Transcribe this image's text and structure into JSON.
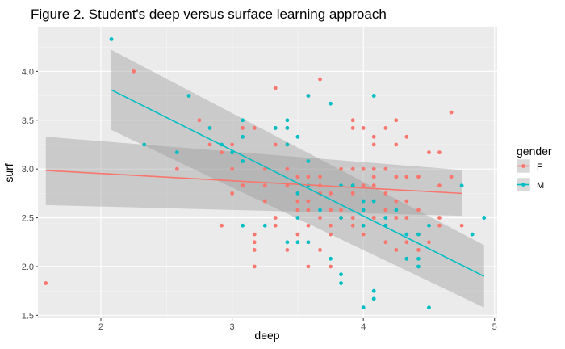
{
  "chart_data": {
    "type": "scatter",
    "title": "Figure 2. Student's deep versus surface learning approach",
    "xlabel": "deep",
    "ylabel": "surf",
    "xlim": [
      1.52,
      5.02
    ],
    "ylim": [
      1.47,
      4.45
    ],
    "x_ticks": [
      2,
      3,
      4,
      5
    ],
    "x_tick_labels": [
      "2",
      "3",
      "4",
      "5"
    ],
    "y_ticks": [
      1.5,
      2.0,
      2.5,
      3.0,
      3.5,
      4.0
    ],
    "y_tick_labels": [
      "1.5",
      "2.0",
      "2.5",
      "3.0",
      "3.5",
      "4.0"
    ],
    "grid": true,
    "legend": {
      "title": "gender",
      "position": "right",
      "entries": [
        {
          "label": "F",
          "color": "#F8766D"
        },
        {
          "label": "M",
          "color": "#00BFC4"
        }
      ]
    },
    "series": [
      {
        "name": "F",
        "color": "#F8766D",
        "points": [
          [
            1.58,
            1.83
          ],
          [
            2.25,
            4.0
          ],
          [
            2.58,
            3.0
          ],
          [
            2.75,
            3.5
          ],
          [
            2.83,
            3.25
          ],
          [
            2.92,
            2.42
          ],
          [
            2.92,
            3.17
          ],
          [
            3.0,
            3.0
          ],
          [
            3.0,
            2.75
          ],
          [
            3.0,
            3.25
          ],
          [
            3.08,
            3.08
          ],
          [
            3.08,
            2.83
          ],
          [
            3.08,
            3.42
          ],
          [
            3.17,
            3.42
          ],
          [
            3.17,
            2.25
          ],
          [
            3.17,
            2.17
          ],
          [
            3.17,
            2.0
          ],
          [
            3.25,
            2.67
          ],
          [
            3.25,
            2.83
          ],
          [
            3.25,
            3.0
          ],
          [
            3.33,
            3.25
          ],
          [
            3.33,
            2.5
          ],
          [
            3.33,
            2.42
          ],
          [
            3.42,
            3.25
          ],
          [
            3.42,
            3.42
          ],
          [
            3.42,
            3.0
          ],
          [
            3.42,
            2.83
          ],
          [
            3.42,
            2.17
          ],
          [
            3.5,
            2.92
          ],
          [
            3.5,
            2.75
          ],
          [
            3.5,
            2.67
          ],
          [
            3.5,
            2.58
          ],
          [
            3.5,
            2.33
          ],
          [
            3.58,
            2.67
          ],
          [
            3.58,
            2.58
          ],
          [
            3.58,
            2.42
          ],
          [
            3.58,
            2.25
          ],
          [
            3.58,
            2.0
          ],
          [
            3.67,
            2.92
          ],
          [
            3.67,
            2.83
          ],
          [
            3.67,
            2.75
          ],
          [
            3.67,
            2.5
          ],
          [
            3.67,
            2.17
          ],
          [
            3.75,
            2.75
          ],
          [
            3.75,
            2.58
          ],
          [
            3.75,
            2.42
          ],
          [
            3.75,
            2.33
          ],
          [
            3.75,
            2.0
          ],
          [
            3.83,
            3.0
          ],
          [
            3.83,
            2.58
          ],
          [
            3.83,
            2.5
          ],
          [
            3.92,
            3.5
          ],
          [
            3.92,
            3.42
          ],
          [
            3.92,
            3.0
          ],
          [
            3.92,
            2.75
          ],
          [
            3.92,
            2.5
          ],
          [
            3.92,
            2.42
          ],
          [
            4.0,
            3.42
          ],
          [
            4.0,
            3.0
          ],
          [
            4.0,
            2.83
          ],
          [
            4.0,
            2.58
          ],
          [
            4.0,
            2.42
          ],
          [
            4.0,
            2.33
          ],
          [
            4.08,
            3.33
          ],
          [
            4.08,
            3.25
          ],
          [
            4.08,
            3.0
          ],
          [
            4.08,
            2.92
          ],
          [
            4.08,
            2.83
          ],
          [
            4.08,
            2.5
          ],
          [
            4.17,
            3.42
          ],
          [
            4.17,
            3.0
          ],
          [
            4.17,
            2.75
          ],
          [
            4.17,
            2.58
          ],
          [
            4.17,
            2.42
          ],
          [
            4.17,
            2.25
          ],
          [
            4.25,
            3.5
          ],
          [
            4.25,
            3.25
          ],
          [
            4.25,
            2.92
          ],
          [
            4.25,
            2.67
          ],
          [
            4.25,
            2.5
          ],
          [
            4.25,
            2.17
          ],
          [
            4.33,
            3.33
          ],
          [
            4.33,
            2.92
          ],
          [
            4.33,
            2.67
          ],
          [
            4.33,
            2.5
          ],
          [
            4.33,
            2.25
          ],
          [
            4.42,
            2.92
          ],
          [
            4.42,
            2.58
          ],
          [
            4.42,
            2.33
          ],
          [
            4.42,
            2.17
          ],
          [
            4.5,
            3.17
          ],
          [
            4.5,
            2.25
          ],
          [
            4.58,
            3.17
          ],
          [
            4.58,
            2.83
          ],
          [
            4.58,
            2.5
          ],
          [
            4.58,
            2.42
          ],
          [
            4.67,
            2.92
          ],
          [
            4.67,
            3.58
          ],
          [
            4.75,
            2.42
          ],
          [
            3.33,
            3.83
          ],
          [
            3.58,
            3.75
          ],
          [
            3.67,
            3.92
          ],
          [
            3.58,
            2.92
          ],
          [
            3.17,
            2.33
          ],
          [
            3.33,
            3.42
          ]
        ],
        "trend": {
          "x": [
            1.58,
            4.75
          ],
          "y": [
            2.985,
            2.75
          ],
          "ci_lower": [
            2.63,
            2.52
          ],
          "ci_upper": [
            3.33,
            2.99
          ]
        }
      },
      {
        "name": "M",
        "color": "#00BFC4",
        "points": [
          [
            2.08,
            4.33
          ],
          [
            2.33,
            3.25
          ],
          [
            2.58,
            3.17
          ],
          [
            2.67,
            3.75
          ],
          [
            2.83,
            3.42
          ],
          [
            2.92,
            3.25
          ],
          [
            3.0,
            3.17
          ],
          [
            3.08,
            3.5
          ],
          [
            3.08,
            3.33
          ],
          [
            3.08,
            3.08
          ],
          [
            3.08,
            2.42
          ],
          [
            3.25,
            2.42
          ],
          [
            3.33,
            3.42
          ],
          [
            3.42,
            3.42
          ],
          [
            3.42,
            3.5
          ],
          [
            3.42,
            3.25
          ],
          [
            3.42,
            2.25
          ],
          [
            3.5,
            3.33
          ],
          [
            3.5,
            2.75
          ],
          [
            3.5,
            2.5
          ],
          [
            3.5,
            2.25
          ],
          [
            3.58,
            3.75
          ],
          [
            3.58,
            3.08
          ],
          [
            3.58,
            2.25
          ],
          [
            3.58,
            2.83
          ],
          [
            3.67,
            2.58
          ],
          [
            3.75,
            3.67
          ],
          [
            3.75,
            2.08
          ],
          [
            3.83,
            2.83
          ],
          [
            3.83,
            2.5
          ],
          [
            3.83,
            1.92
          ],
          [
            3.83,
            1.83
          ],
          [
            3.92,
            2.83
          ],
          [
            4.0,
            2.67
          ],
          [
            4.0,
            2.58
          ],
          [
            4.0,
            2.42
          ],
          [
            4.0,
            1.58
          ],
          [
            4.08,
            3.75
          ],
          [
            4.08,
            2.67
          ],
          [
            4.08,
            1.75
          ],
          [
            4.08,
            1.67
          ],
          [
            4.17,
            2.5
          ],
          [
            4.17,
            2.42
          ],
          [
            4.25,
            2.58
          ],
          [
            4.33,
            2.33
          ],
          [
            4.33,
            2.08
          ],
          [
            4.42,
            2.0
          ],
          [
            4.42,
            2.33
          ],
          [
            4.42,
            2.08
          ],
          [
            4.5,
            2.42
          ],
          [
            4.5,
            1.58
          ],
          [
            4.75,
            2.83
          ],
          [
            4.83,
            2.33
          ],
          [
            4.92,
            2.5
          ]
        ],
        "trend": {
          "x": [
            2.08,
            4.92
          ],
          "y": [
            3.81,
            1.9
          ],
          "ci_lower": [
            3.4,
            1.58
          ],
          "ci_upper": [
            4.22,
            2.22
          ]
        }
      }
    ]
  },
  "colors": {
    "panel_background": "#EBEBEB",
    "grid_major": "#FFFFFF",
    "ribbon": "#999999"
  }
}
